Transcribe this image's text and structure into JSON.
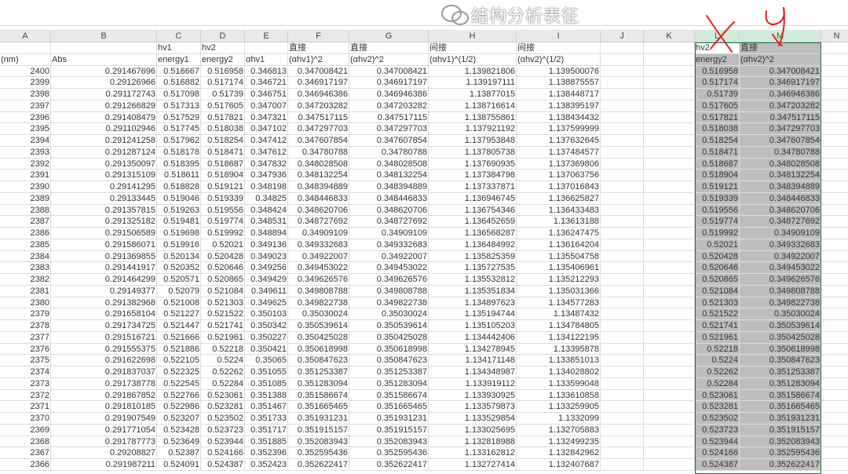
{
  "columns": [
    "A",
    "B",
    "C",
    "D",
    "E",
    "F",
    "G",
    "H",
    "I",
    "J",
    "K",
    "L",
    "M",
    "N"
  ],
  "header_row1": {
    "C": "hv1",
    "D": "hv2",
    "F": "直接",
    "G": "直接",
    "H": "间接",
    "I": "间接",
    "L": "hv2",
    "M": "直接"
  },
  "header_row2": {
    "A": "(nm)",
    "B": "Abs",
    "C": "energy1",
    "D": "energy2",
    "E": "αhv1",
    "F": "(αhv1)^2",
    "G": "(αhv2)^2",
    "H": "(αhv1)^(1/2)",
    "I": "(αhv2)^(1/2)",
    "L": "energy2",
    "M": "(αhv2)^2"
  },
  "rows": [
    [
      "2400",
      "0.291467696",
      "0.516667",
      "0.516958",
      "0.346813",
      "0.347008421",
      "0.347008421",
      "1.139821806",
      "1.139500076",
      "0.516958",
      "0.347008421"
    ],
    [
      "2399",
      "0.29126966",
      "0.516882",
      "0.517174",
      "0.346721",
      "0.346917197",
      "0.346917197",
      "1.139197111",
      "1.138875557",
      "0.517174",
      "0.346917197"
    ],
    [
      "2398",
      "0.291172743",
      "0.517098",
      "0.51739",
      "0.346751",
      "0.346946386",
      "0.346946386",
      "1.13877015",
      "1.138448717",
      "0.51739",
      "0.346946386"
    ],
    [
      "2397",
      "0.291266829",
      "0.517313",
      "0.517605",
      "0.347007",
      "0.347203282",
      "0.347203282",
      "1.138716614",
      "1.138395197",
      "0.517605",
      "0.347203282"
    ],
    [
      "2396",
      "0.291408479",
      "0.517529",
      "0.517821",
      "0.347321",
      "0.347517115",
      "0.347517115",
      "1.138755861",
      "1.138434432",
      "0.517821",
      "0.347517115"
    ],
    [
      "2395",
      "0.291102946",
      "0.517745",
      "0.518038",
      "0.347102",
      "0.347297703",
      "0.347297703",
      "1.137921192",
      "1.137599999",
      "0.518038",
      "0.347297703"
    ],
    [
      "2394",
      "0.291241258",
      "0.517962",
      "0.518254",
      "0.347412",
      "0.347607854",
      "0.347607854",
      "1.137953848",
      "1.137632645",
      "0.518254",
      "0.347607854"
    ],
    [
      "2393",
      "0.291287124",
      "0.518178",
      "0.518471",
      "0.347612",
      "0.34780788",
      "0.34780788",
      "1.137805738",
      "1.137484577",
      "0.518471",
      "0.34780788"
    ],
    [
      "2392",
      "0.291350097",
      "0.518395",
      "0.518687",
      "0.347832",
      "0.348028508",
      "0.348028508",
      "1.137690935",
      "1.137369806",
      "0.518687",
      "0.348028508"
    ],
    [
      "2391",
      "0.291315109",
      "0.518611",
      "0.518904",
      "0.347936",
      "0.348132254",
      "0.348132254",
      "1.137384798",
      "1.137063756",
      "0.518904",
      "0.348132254"
    ],
    [
      "2390",
      "0.29141295",
      "0.518828",
      "0.519121",
      "0.348198",
      "0.348394889",
      "0.348394889",
      "1.137337871",
      "1.137016843",
      "0.519121",
      "0.348394889"
    ],
    [
      "2389",
      "0.29133445",
      "0.519046",
      "0.519339",
      "0.34825",
      "0.348446833",
      "0.348446833",
      "1.136946745",
      "1.136625827",
      "0.519339",
      "0.348446833"
    ],
    [
      "2388",
      "0.291357815",
      "0.519263",
      "0.519556",
      "0.348424",
      "0.348620706",
      "0.348620706",
      "1.136754346",
      "1.136433483",
      "0.519556",
      "0.348620706"
    ],
    [
      "2387",
      "0.291325182",
      "0.519481",
      "0.519774",
      "0.348531",
      "0.348727692",
      "0.348727692",
      "1.136452659",
      "1.13613188",
      "0.519774",
      "0.348727692"
    ],
    [
      "2386",
      "0.291506589",
      "0.519698",
      "0.519992",
      "0.348894",
      "0.34909109",
      "0.34909109",
      "1.136568287",
      "1.136247475",
      "0.519992",
      "0.34909109"
    ],
    [
      "2385",
      "0.291586071",
      "0.519916",
      "0.52021",
      "0.349136",
      "0.349332683",
      "0.349332683",
      "1.136484992",
      "1.136164204",
      "0.52021",
      "0.349332683"
    ],
    [
      "2384",
      "0.291369855",
      "0.520134",
      "0.520428",
      "0.349023",
      "0.34922007",
      "0.34922007",
      "1.135825359",
      "1.135504758",
      "0.520428",
      "0.34922007"
    ],
    [
      "2383",
      "0.291441917",
      "0.520352",
      "0.520646",
      "0.349256",
      "0.349453022",
      "0.349453022",
      "1.135727535",
      "1.135406961",
      "0.520646",
      "0.349453022"
    ],
    [
      "2382",
      "0.291464299",
      "0.520571",
      "0.520865",
      "0.349429",
      "0.349626576",
      "0.349626576",
      "1.135532812",
      "1.135212293",
      "0.520865",
      "0.349626576"
    ],
    [
      "2381",
      "0.29149377",
      "0.52079",
      "0.521084",
      "0.349611",
      "0.349808788",
      "0.349808788",
      "1.135351834",
      "1.135031366",
      "0.521084",
      "0.349808788"
    ],
    [
      "2380",
      "0.291382968",
      "0.521008",
      "0.521303",
      "0.349625",
      "0.349822738",
      "0.349822738",
      "1.134897623",
      "1.134577283",
      "0.521303",
      "0.349822738"
    ],
    [
      "2379",
      "0.291658104",
      "0.521227",
      "0.521522",
      "0.350103",
      "0.35030024",
      "0.35030024",
      "1.135194744",
      "1.13487432",
      "0.521522",
      "0.35030024"
    ],
    [
      "2378",
      "0.291734725",
      "0.521447",
      "0.521741",
      "0.350342",
      "0.350539614",
      "0.350539614",
      "1.135105203",
      "1.134784805",
      "0.521741",
      "0.350539614"
    ],
    [
      "2377",
      "0.291516721",
      "0.521666",
      "0.521961",
      "0.350227",
      "0.350425028",
      "0.350425028",
      "1.134442406",
      "1.134122195",
      "0.521961",
      "0.350425028"
    ],
    [
      "2376",
      "0.291555375",
      "0.521886",
      "0.52218",
      "0.350421",
      "0.350618998",
      "0.350618998",
      "1.134278945",
      "1.13395878",
      "0.52218",
      "0.350618998"
    ],
    [
      "2375",
      "0.291622698",
      "0.522105",
      "0.5224",
      "0.35065",
      "0.350847623",
      "0.350847623",
      "1.134171148",
      "1.133851013",
      "0.5224",
      "0.350847623"
    ],
    [
      "2374",
      "0.291837037",
      "0.522325",
      "0.52262",
      "0.351055",
      "0.351253387",
      "0.351253387",
      "1.134348987",
      "1.134028802",
      "0.52262",
      "0.351253387"
    ],
    [
      "2373",
      "0.291738778",
      "0.522545",
      "0.52284",
      "0.351085",
      "0.351283094",
      "0.351283094",
      "1.133919112",
      "1.133599048",
      "0.52284",
      "0.351283094"
    ],
    [
      "2372",
      "0.291867852",
      "0.522766",
      "0.523061",
      "0.351388",
      "0.351586674",
      "0.351586674",
      "1.133930925",
      "1.133610858",
      "0.523061",
      "0.351586674"
    ],
    [
      "2371",
      "0.291810185",
      "0.522986",
      "0.523281",
      "0.351467",
      "0.351665465",
      "0.351665465",
      "1.133579873",
      "1.133259905",
      "0.523281",
      "0.351665465"
    ],
    [
      "2370",
      "0.291907549",
      "0.523207",
      "0.523502",
      "0.351733",
      "0.351931231",
      "0.351931231",
      "1.133529854",
      "1.1332099",
      "0.523502",
      "0.351931231"
    ],
    [
      "2369",
      "0.291771054",
      "0.523428",
      "0.523723",
      "0.351717",
      "0.351915157",
      "0.351915157",
      "1.133025695",
      "1.132705883",
      "0.523723",
      "0.351915157"
    ],
    [
      "2368",
      "0.291787773",
      "0.523649",
      "0.523944",
      "0.351885",
      "0.352083943",
      "0.352083943",
      "1.132818988",
      "1.132499235",
      "0.523944",
      "0.352083943"
    ],
    [
      "2367",
      "0.29208827",
      "0.52387",
      "0.524166",
      "0.352396",
      "0.352595436",
      "0.352595436",
      "1.133162812",
      "1.132842962",
      "0.524166",
      "0.352595436"
    ],
    [
      "2366",
      "0.291987211",
      "0.524091",
      "0.524387",
      "0.352423",
      "0.352622417",
      "0.352622417",
      "1.132727414",
      "1.132407687",
      "0.524387",
      "0.352622417"
    ]
  ],
  "annotations": {
    "x_mark": "X",
    "y_mark": "Y"
  },
  "selection_color": "#217346",
  "watermark": {
    "text": "结构分析表征",
    "icon": "wechat-icon"
  }
}
